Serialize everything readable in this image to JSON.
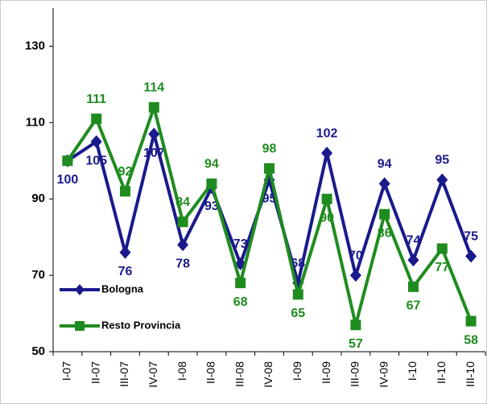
{
  "chart_data": {
    "type": "line",
    "categories": [
      "I-07",
      "II-07",
      "III-07",
      "IV-07",
      "I-08",
      "II-08",
      "III-08",
      "IV-08",
      "I-09",
      "II-09",
      "III-09",
      "IV-09",
      "I-10",
      "II-10",
      "III-10"
    ],
    "series": [
      {
        "name": "Bologna",
        "color": "#1a1a8c",
        "marker": "diamond",
        "values": [
          100,
          105,
          76,
          107,
          78,
          93,
          73,
          95,
          68,
          102,
          70,
          94,
          74,
          95,
          75
        ]
      },
      {
        "name": "Resto Provincia",
        "color": "#1f8c1f",
        "marker": "square",
        "values": [
          100,
          111,
          92,
          114,
          84,
          94,
          68,
          98,
          65,
          90,
          57,
          86,
          67,
          77,
          58
        ],
        "value_labels": [
          null,
          "111",
          "92",
          "114",
          "84",
          "94",
          "68",
          "98",
          "65",
          "90",
          "57",
          "86",
          "67",
          "77",
          "58"
        ]
      }
    ],
    "ylim": [
      50,
      140
    ],
    "yticks": [
      50,
      70,
      90,
      110,
      130
    ],
    "grid": false,
    "legend": "lower left"
  }
}
